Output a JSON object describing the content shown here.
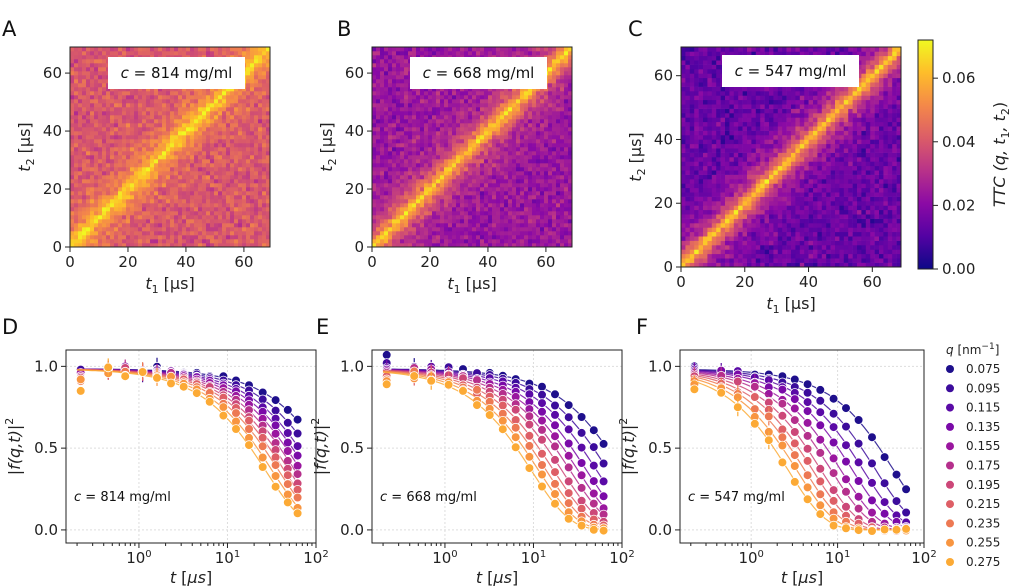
{
  "colors": {
    "cmap": [
      "#0d0887",
      "#5302a3",
      "#8b0aa5",
      "#b83289",
      "#db5c68",
      "#f48849",
      "#febd2a",
      "#f0f921"
    ],
    "series": [
      "#1e0f8c",
      "#3c0c9c",
      "#5a0aa6",
      "#7a0aa8",
      "#9a169f",
      "#b52f8c",
      "#cc4778",
      "#de5f66",
      "#ed7953",
      "#f89540",
      "#fcaa35"
    ]
  },
  "panels": [
    "A",
    "B",
    "C",
    "D",
    "E",
    "F"
  ],
  "chart_data": [
    {
      "panel": "A",
      "type": "heatmap",
      "annotation": "c = 814 mg/ml",
      "xlabel": "t1 [µs]",
      "ylabel": "t2 [µs]",
      "xlim": [
        0,
        69
      ],
      "ylim": [
        0,
        69
      ],
      "xticks": [
        "0",
        "20",
        "40",
        "60"
      ],
      "yticks": [
        "0",
        "20",
        "40",
        "60"
      ],
      "background_level": 0.04,
      "diagonal_level": 0.068
    },
    {
      "panel": "B",
      "type": "heatmap",
      "annotation": "c = 668 mg/ml",
      "xlabel": "t1 [µs]",
      "ylabel": "t2 [µs]",
      "xlim": [
        0,
        69
      ],
      "ylim": [
        0,
        69
      ],
      "xticks": [
        "0",
        "20",
        "40",
        "60"
      ],
      "yticks": [
        "0",
        "20",
        "40",
        "60"
      ],
      "background_level": 0.024,
      "diagonal_level": 0.066
    },
    {
      "panel": "C",
      "type": "heatmap",
      "annotation": "c = 547 mg/ml",
      "xlabel": "t1 [µs]",
      "ylabel": "t2 [µs]",
      "xlim": [
        0,
        69
      ],
      "ylim": [
        0,
        69
      ],
      "xticks": [
        "0",
        "20",
        "40",
        "60"
      ],
      "yticks": [
        "0",
        "20",
        "40",
        "60"
      ],
      "background_level": 0.014,
      "diagonal_level": 0.064,
      "colorbar": {
        "label": "TTC (q, t1, t2)",
        "range": [
          0.0,
          0.072
        ],
        "ticks": [
          "0.00",
          "0.02",
          "0.04",
          "0.06"
        ]
      }
    },
    {
      "panel": "D",
      "type": "scatter",
      "annotation": "c = 814 mg/ml",
      "xlabel": "t [µs]",
      "ylabel": "|f(q,t)|2",
      "xscale": "log",
      "xlim": [
        0.15,
        100
      ],
      "ylim": [
        -0.08,
        1.1
      ],
      "yticks": [
        "0.0",
        "0.5",
        "1.0"
      ],
      "xticks": [
        "10^0",
        "10^1",
        "10^2"
      ],
      "fit_tau": [
        160,
        120,
        95,
        80,
        68,
        58,
        50,
        44,
        38,
        32,
        27
      ],
      "first_points": [
        0.97,
        0.98,
        0.96,
        0.95,
        0.96,
        0.94,
        0.93,
        0.92,
        0.91,
        0.92,
        0.85
      ]
    },
    {
      "panel": "E",
      "type": "scatter",
      "annotation": "c = 668 mg/ml",
      "xlabel": "t [µs]",
      "ylabel": "|f(q,t)|2",
      "xscale": "log",
      "xlim": [
        0.15,
        100
      ],
      "ylim": [
        -0.08,
        1.1
      ],
      "yticks": [
        "0.0",
        "0.5",
        "1.0"
      ],
      "xticks": [
        "10^0",
        "10^1",
        "10^2"
      ],
      "fit_tau": [
        100,
        70,
        52,
        40,
        32,
        26,
        21,
        17,
        14,
        11.5,
        9.5
      ],
      "first_points": [
        1.07,
        1.02,
        0.99,
        0.98,
        0.97,
        0.96,
        0.95,
        0.94,
        0.92,
        0.91,
        0.89
      ]
    },
    {
      "panel": "F",
      "type": "scatter",
      "annotation": "c = 547 mg/ml",
      "xlabel": "t [µs]",
      "ylabel": "|f(q,t)|2",
      "xscale": "log",
      "xlim": [
        0.15,
        100
      ],
      "ylim": [
        -0.08,
        1.1
      ],
      "yticks": [
        "0.0",
        "0.5",
        "1.0"
      ],
      "xticks": [
        "10^0",
        "10^1",
        "10^2"
      ],
      "fit_tau": [
        45,
        28,
        20,
        15,
        11,
        8.5,
        6.5,
        5.2,
        4.2,
        3.4,
        2.7
      ],
      "first_points": [
        1.0,
        0.99,
        0.98,
        0.97,
        0.96,
        0.95,
        0.94,
        0.92,
        0.91,
        0.89,
        0.86
      ]
    }
  ],
  "legend": {
    "title": "q [nm⁻¹]",
    "entries": [
      "0.075",
      "0.095",
      "0.115",
      "0.135",
      "0.155",
      "0.175",
      "0.195",
      "0.215",
      "0.235",
      "0.255",
      "0.275"
    ]
  },
  "time_points": [
    0.22,
    0.45,
    0.7,
    1.1,
    1.6,
    2.3,
    3.2,
    4.5,
    6.3,
    9,
    12.5,
    17.5,
    25,
    35,
    48,
    62
  ]
}
